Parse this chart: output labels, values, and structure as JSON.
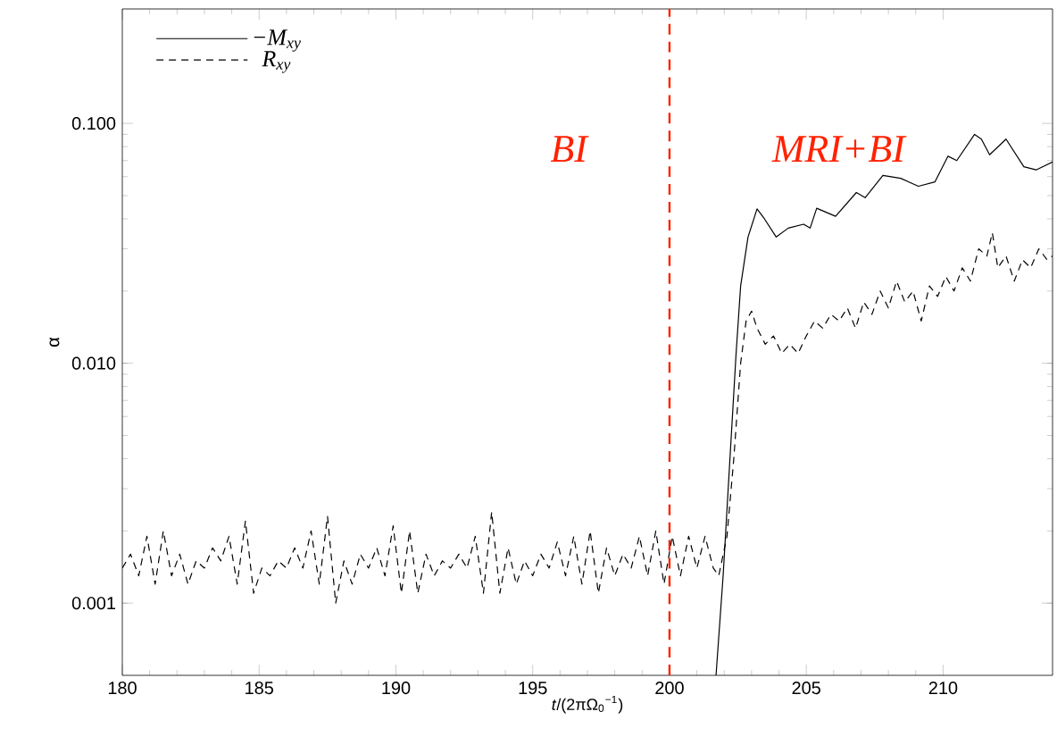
{
  "chart_data": {
    "type": "line",
    "xlabel": "*t*/(2πΩ$_{0}$$^{−1}$)",
    "ylabel": "α",
    "log": "y",
    "legend": "top left",
    "xlim": [
      180,
      214
    ],
    "xticks": [
      180,
      185,
      190,
      195,
      200,
      205,
      210
    ],
    "ylim": [
      0.0005,
      0.3
    ],
    "yticks": [
      {
        "value": 0.001,
        "label": "0.001"
      },
      {
        "value": 0.01,
        "label": "0.010"
      },
      {
        "value": 0.1,
        "label": "0.100"
      }
    ],
    "ref_lines": [
      {
        "axis": "x",
        "value": 200,
        "color": "#ff2200",
        "line_style": "dashed"
      }
    ],
    "annotations": [
      "BI",
      "MRI+BI"
    ],
    "series": [
      {
        "name": "−*M*$_{xy}$",
        "color": "#000000",
        "line_style": "solid",
        "x": [
          201.7,
          201.96,
          202.43,
          202.6,
          202.87,
          203.2,
          203.47,
          203.9,
          204.34,
          204.9,
          205.14,
          205.38,
          206.07,
          206.83,
          207.15,
          207.8,
          208.45,
          209.1,
          209.7,
          210.18,
          210.5,
          211.15,
          211.4,
          211.7,
          212.3,
          212.95,
          213.4,
          214.0
        ],
        "values": [
          0.0005,
          0.0013,
          0.0108,
          0.021,
          0.0336,
          0.044,
          0.04,
          0.0336,
          0.0366,
          0.038,
          0.0366,
          0.0443,
          0.041,
          0.0515,
          0.049,
          0.0607,
          0.059,
          0.0547,
          0.057,
          0.073,
          0.07,
          0.09,
          0.086,
          0.074,
          0.086,
          0.066,
          0.064,
          0.069
        ]
      },
      {
        "name": "*R*$_{xy}$",
        "color": "#000000",
        "line_style": "dashed",
        "x": [
          180.0,
          180.3,
          180.6,
          180.9,
          181.2,
          181.5,
          181.8,
          182.1,
          182.4,
          182.7,
          183.0,
          183.3,
          183.6,
          183.9,
          184.2,
          184.5,
          184.8,
          185.1,
          185.4,
          185.7,
          186.0,
          186.3,
          186.6,
          186.9,
          187.2,
          187.5,
          187.8,
          188.1,
          188.4,
          188.7,
          189.0,
          189.3,
          189.6,
          189.9,
          190.2,
          190.5,
          190.8,
          191.1,
          191.4,
          191.7,
          192.0,
          192.3,
          192.6,
          192.9,
          193.2,
          193.5,
          193.8,
          194.1,
          194.4,
          194.7,
          195.0,
          195.3,
          195.6,
          195.9,
          196.2,
          196.5,
          196.8,
          197.1,
          197.4,
          197.7,
          198.0,
          198.3,
          198.6,
          198.9,
          199.2,
          199.5,
          199.8,
          200.1,
          200.4,
          200.7,
          201.0,
          201.3,
          201.6,
          201.8,
          202.1,
          202.35,
          202.6,
          202.8,
          203.0,
          203.2,
          203.5,
          203.8,
          204.1,
          204.4,
          204.7,
          205.0,
          205.3,
          205.6,
          205.9,
          206.2,
          206.5,
          206.8,
          207.1,
          207.4,
          207.7,
          208.0,
          208.3,
          208.6,
          208.9,
          209.2,
          209.5,
          209.8,
          210.1,
          210.4,
          210.7,
          211.0,
          211.3,
          211.6,
          211.8,
          212.0,
          212.3,
          212.6,
          212.9,
          213.2,
          213.5,
          213.8,
          214.0
        ],
        "values": [
          0.0014,
          0.0016,
          0.0013,
          0.0019,
          0.0012,
          0.002,
          0.0013,
          0.0016,
          0.0012,
          0.0015,
          0.0014,
          0.0017,
          0.0015,
          0.0019,
          0.0012,
          0.0022,
          0.0011,
          0.0014,
          0.0013,
          0.0015,
          0.0014,
          0.0017,
          0.0014,
          0.002,
          0.0012,
          0.0023,
          0.001,
          0.0015,
          0.0012,
          0.0016,
          0.0014,
          0.0017,
          0.0013,
          0.0021,
          0.0011,
          0.002,
          0.0011,
          0.0016,
          0.0013,
          0.0015,
          0.0014,
          0.0016,
          0.0014,
          0.0019,
          0.0011,
          0.0024,
          0.0011,
          0.0017,
          0.0012,
          0.0015,
          0.0013,
          0.0016,
          0.0014,
          0.0018,
          0.0013,
          0.0019,
          0.0012,
          0.002,
          0.0011,
          0.0017,
          0.0013,
          0.0016,
          0.0014,
          0.0019,
          0.0013,
          0.002,
          0.0012,
          0.0019,
          0.0013,
          0.0019,
          0.0014,
          0.0019,
          0.0014,
          0.0013,
          0.0019,
          0.004,
          0.01,
          0.015,
          0.0165,
          0.014,
          0.012,
          0.013,
          0.011,
          0.012,
          0.011,
          0.013,
          0.015,
          0.014,
          0.016,
          0.015,
          0.017,
          0.014,
          0.018,
          0.016,
          0.02,
          0.017,
          0.022,
          0.018,
          0.02,
          0.015,
          0.021,
          0.019,
          0.023,
          0.02,
          0.025,
          0.022,
          0.03,
          0.028,
          0.035,
          0.025,
          0.028,
          0.022,
          0.027,
          0.025,
          0.03,
          0.027,
          0.028
        ]
      }
    ]
  }
}
